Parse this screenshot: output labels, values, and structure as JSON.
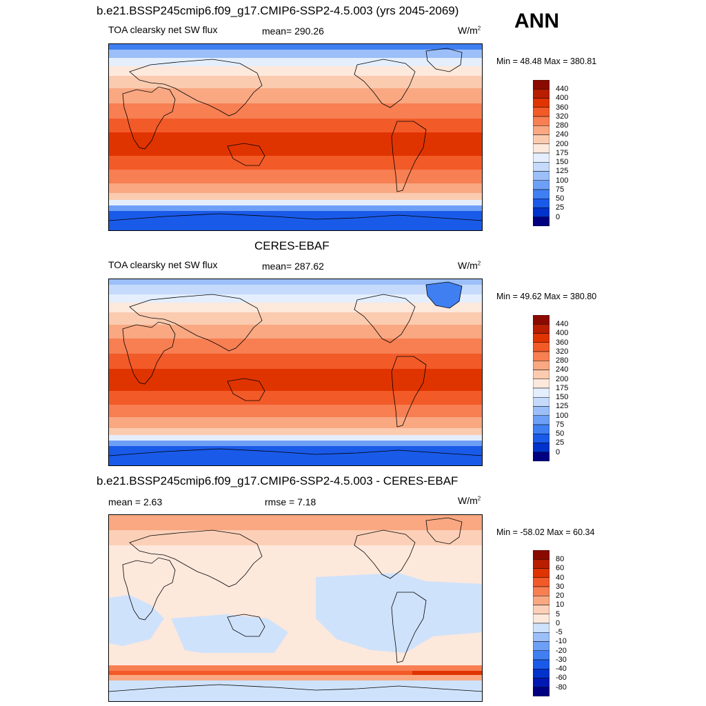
{
  "header": {
    "ann_label": "ANN"
  },
  "panels": [
    {
      "id": "model",
      "title": "b.e21.BSSP245cmip6.f09_g17.CMIP6-SSP2-4.5.003 (yrs 2045-2069)",
      "left_label": "TOA clearsky net SW flux",
      "center_label": "mean= 290.26",
      "unit_base": "W/m",
      "unit_exp": "2",
      "minmax": "Min =  48.48 Max = 380.81",
      "colorbar_labels": [
        "440",
        "400",
        "360",
        "320",
        "280",
        "240",
        "200",
        "175",
        "150",
        "125",
        "100",
        "75",
        "50",
        "25",
        "0"
      ]
    },
    {
      "id": "obs",
      "title": "CERES-EBAF",
      "left_label": "TOA clearsky net SW flux",
      "center_label": "mean= 287.62",
      "unit_base": "W/m",
      "unit_exp": "2",
      "minmax": "Min =  49.62 Max = 380.80",
      "colorbar_labels": [
        "440",
        "400",
        "360",
        "320",
        "280",
        "240",
        "200",
        "175",
        "150",
        "125",
        "100",
        "75",
        "50",
        "25",
        "0"
      ]
    },
    {
      "id": "diff",
      "title": "b.e21.BSSP245cmip6.f09_g17.CMIP6-SSP2-4.5.003 - CERES-EBAF",
      "left_label": "mean =   2.63",
      "center_label": "rmse =   7.18",
      "unit_base": "W/m",
      "unit_exp": "2",
      "minmax": "Min = -58.02 Max =  60.34",
      "colorbar_labels": [
        "80",
        "60",
        "40",
        "30",
        "20",
        "10",
        "5",
        "0",
        "-5",
        "-10",
        "-20",
        "-30",
        "-40",
        "-60",
        "-80"
      ]
    }
  ],
  "colors": {
    "flux_scale": [
      "#000080",
      "#0019b3",
      "#0033cc",
      "#1a5ae8",
      "#3f7ff2",
      "#6e9ff7",
      "#9cbff9",
      "#c6dbfb",
      "#e4eefd",
      "#fde8dc",
      "#fbcbb0",
      "#f9a882",
      "#f77f52",
      "#f25a28",
      "#e03400",
      "#b81e00",
      "#8b0a00"
    ],
    "diff_scale": [
      "#000080",
      "#0019b3",
      "#0033cc",
      "#1a5ae8",
      "#3f7ff2",
      "#6e9ff7",
      "#9cbff9",
      "#cfe2fb",
      "#fde8dc",
      "#fcd0b8",
      "#f9a882",
      "#f77f52",
      "#f25a28",
      "#e03400",
      "#b81e00",
      "#8b0a00"
    ]
  }
}
